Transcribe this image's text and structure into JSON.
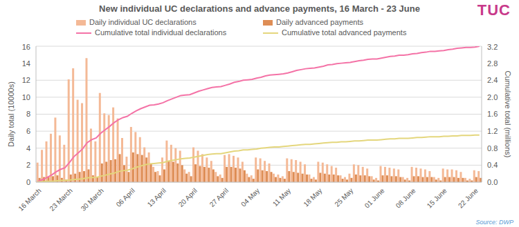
{
  "chart_data": {
    "type": "bar",
    "title": "New individual UC declarations and advance payments, 16 March - 23 June",
    "logo": "TUC",
    "source": "Source: DWP",
    "y_label": "Daily total (10000s)",
    "y2_label": "Cumulative total (millions)",
    "grid": true,
    "legend": "top",
    "categories": [
      "16 March",
      null,
      null,
      null,
      null,
      null,
      null,
      "23 March",
      null,
      null,
      null,
      null,
      null,
      null,
      "30 March",
      null,
      null,
      null,
      null,
      null,
      null,
      "06 April",
      null,
      null,
      null,
      null,
      null,
      null,
      "13 April",
      null,
      null,
      null,
      null,
      null,
      null,
      "20 April",
      null,
      null,
      null,
      null,
      null,
      null,
      "27 April",
      null,
      null,
      null,
      null,
      null,
      null,
      "04 May",
      null,
      null,
      null,
      null,
      null,
      null,
      "11 May",
      null,
      null,
      null,
      null,
      null,
      null,
      "18 May",
      null,
      null,
      null,
      null,
      null,
      null,
      "25 May",
      null,
      null,
      null,
      null,
      null,
      null,
      "01 June",
      null,
      null,
      null,
      null,
      null,
      null,
      "08 June",
      null,
      null,
      null,
      null,
      null,
      null,
      "15 June",
      null,
      null,
      null,
      null,
      null,
      null,
      "22 June",
      null
    ],
    "ylim": [
      0,
      16
    ],
    "yticks": [
      0,
      2,
      4,
      6,
      8,
      10,
      12,
      14,
      16
    ],
    "y2lim": [
      0,
      3.2
    ],
    "y2ticks": [
      {
        "value": 0,
        "label": "0.0"
      },
      0.4,
      0.8,
      1.2,
      1.6,
      {
        "value": 2,
        "label": "2.0"
      },
      2.4,
      2.8,
      3.2
    ],
    "series": [
      {
        "name": "Daily individual UC declarations",
        "type": "bar",
        "color": "#f4b996",
        "values": [
          2.3,
          3.8,
          4.8,
          5.7,
          7.6,
          5.5,
          4.4,
          12.1,
          13.4,
          9.7,
          9.3,
          14.6,
          6.3,
          4.8,
          10.5,
          8.1,
          7.9,
          8.8,
          7.5,
          5.2,
          3.0,
          6.5,
          5.9,
          5.3,
          4.1,
          3.5,
          1.8,
          1.3,
          2.9,
          4.9,
          4.4,
          4.0,
          3.7,
          1.5,
          1.2,
          4.1,
          3.7,
          3.3,
          2.9,
          2.5,
          1.2,
          0.9,
          3.2,
          3.3,
          3.1,
          2.9,
          2.4,
          1.0,
          0.8,
          2.9,
          2.8,
          2.5,
          2.2,
          1.0,
          0.9,
          0.7,
          2.8,
          2.7,
          2.6,
          2.4,
          2.1,
          0.9,
          0.6,
          2.4,
          2.3,
          2.1,
          1.9,
          1.7,
          0.8,
          0.6,
          1.0,
          2.1,
          2.0,
          1.8,
          1.6,
          0.7,
          0.5,
          1.9,
          1.8,
          1.7,
          1.6,
          1.5,
          0.6,
          0.5,
          1.8,
          1.7,
          1.6,
          1.5,
          1.3,
          0.6,
          0.5,
          1.6,
          1.5,
          1.5,
          1.4,
          1.2,
          0.5,
          0.4,
          1.4,
          1.3
        ]
      },
      {
        "name": "Daily advanced payments",
        "type": "bar",
        "color": "#de8d55",
        "values": [
          0.5,
          0.6,
          0.6,
          0.7,
          0.8,
          0.5,
          0.3,
          0.9,
          1.0,
          1.2,
          1.3,
          1.5,
          0.8,
          0.6,
          2.2,
          2.4,
          2.6,
          2.7,
          3.3,
          2.0,
          1.2,
          3.5,
          3.3,
          3.2,
          2.9,
          2.2,
          1.2,
          0.8,
          1.5,
          2.5,
          2.4,
          2.2,
          2.0,
          1.0,
          0.7,
          2.1,
          1.9,
          1.8,
          1.7,
          1.5,
          0.7,
          0.5,
          1.8,
          1.8,
          1.7,
          1.6,
          1.4,
          0.6,
          0.4,
          1.5,
          1.4,
          1.3,
          1.2,
          0.6,
          0.5,
          0.4,
          1.3,
          1.2,
          1.1,
          1.0,
          0.9,
          0.4,
          0.3,
          1.1,
          1.0,
          0.9,
          0.9,
          0.8,
          0.4,
          0.3,
          0.5,
          0.9,
          0.8,
          0.8,
          0.7,
          0.3,
          0.2,
          0.8,
          0.8,
          0.7,
          0.7,
          0.6,
          0.3,
          0.2,
          0.7,
          0.7,
          0.6,
          0.6,
          0.6,
          0.3,
          0.2,
          0.6,
          0.6,
          0.6,
          0.5,
          0.5,
          0.2,
          0.2,
          0.6,
          0.5
        ]
      },
      {
        "name": "Cumulative total individual declarations",
        "type": "line",
        "axis": "y2",
        "color": "#f472a6",
        "values": [
          0.02,
          0.06,
          0.11,
          0.17,
          0.24,
          0.3,
          0.34,
          0.46,
          0.6,
          0.69,
          0.79,
          0.93,
          1.0,
          1.04,
          1.15,
          1.23,
          1.31,
          1.4,
          1.47,
          1.52,
          1.55,
          1.62,
          1.68,
          1.73,
          1.77,
          1.81,
          1.82,
          1.84,
          1.87,
          1.92,
          1.96,
          2.0,
          2.04,
          2.05,
          2.06,
          2.1,
          2.14,
          2.17,
          2.2,
          2.23,
          2.24,
          2.25,
          2.28,
          2.31,
          2.35,
          2.37,
          2.4,
          2.41,
          2.42,
          2.45,
          2.47,
          2.5,
          2.52,
          2.53,
          2.54,
          2.55,
          2.57,
          2.6,
          2.63,
          2.65,
          2.67,
          2.68,
          2.69,
          2.71,
          2.73,
          2.76,
          2.77,
          2.79,
          2.8,
          2.81,
          2.82,
          2.84,
          2.86,
          2.87,
          2.89,
          2.9,
          2.9,
          2.92,
          2.94,
          2.96,
          2.97,
          2.99,
          2.99,
          3.0,
          3.02,
          3.03,
          3.05,
          3.06,
          3.08,
          3.08,
          3.09,
          3.1,
          3.12,
          3.13,
          3.15,
          3.16,
          3.17,
          3.17,
          3.18,
          3.2
        ]
      },
      {
        "name": "Cumulative total advanced payments",
        "type": "line",
        "axis": "y2",
        "color": "#e4d67c",
        "values": [
          0.01,
          0.01,
          0.02,
          0.02,
          0.03,
          0.04,
          0.04,
          0.05,
          0.06,
          0.07,
          0.08,
          0.1,
          0.11,
          0.11,
          0.14,
          0.16,
          0.19,
          0.21,
          0.25,
          0.27,
          0.28,
          0.31,
          0.35,
          0.38,
          0.41,
          0.43,
          0.44,
          0.45,
          0.46,
          0.49,
          0.51,
          0.53,
          0.55,
          0.56,
          0.57,
          0.59,
          0.61,
          0.63,
          0.65,
          0.66,
          0.67,
          0.67,
          0.69,
          0.71,
          0.73,
          0.74,
          0.76,
          0.76,
          0.77,
          0.78,
          0.8,
          0.81,
          0.82,
          0.83,
          0.83,
          0.84,
          0.85,
          0.86,
          0.87,
          0.88,
          0.89,
          0.89,
          0.9,
          0.91,
          0.92,
          0.93,
          0.94,
          0.94,
          0.95,
          0.95,
          0.96,
          0.97,
          0.97,
          0.98,
          0.99,
          0.99,
          0.99,
          1.0,
          1.01,
          1.02,
          1.02,
          1.03,
          1.03,
          1.03,
          1.04,
          1.05,
          1.05,
          1.06,
          1.07,
          1.07,
          1.07,
          1.08,
          1.08,
          1.09,
          1.09,
          1.1,
          1.1,
          1.1,
          1.11,
          1.11
        ]
      }
    ]
  }
}
